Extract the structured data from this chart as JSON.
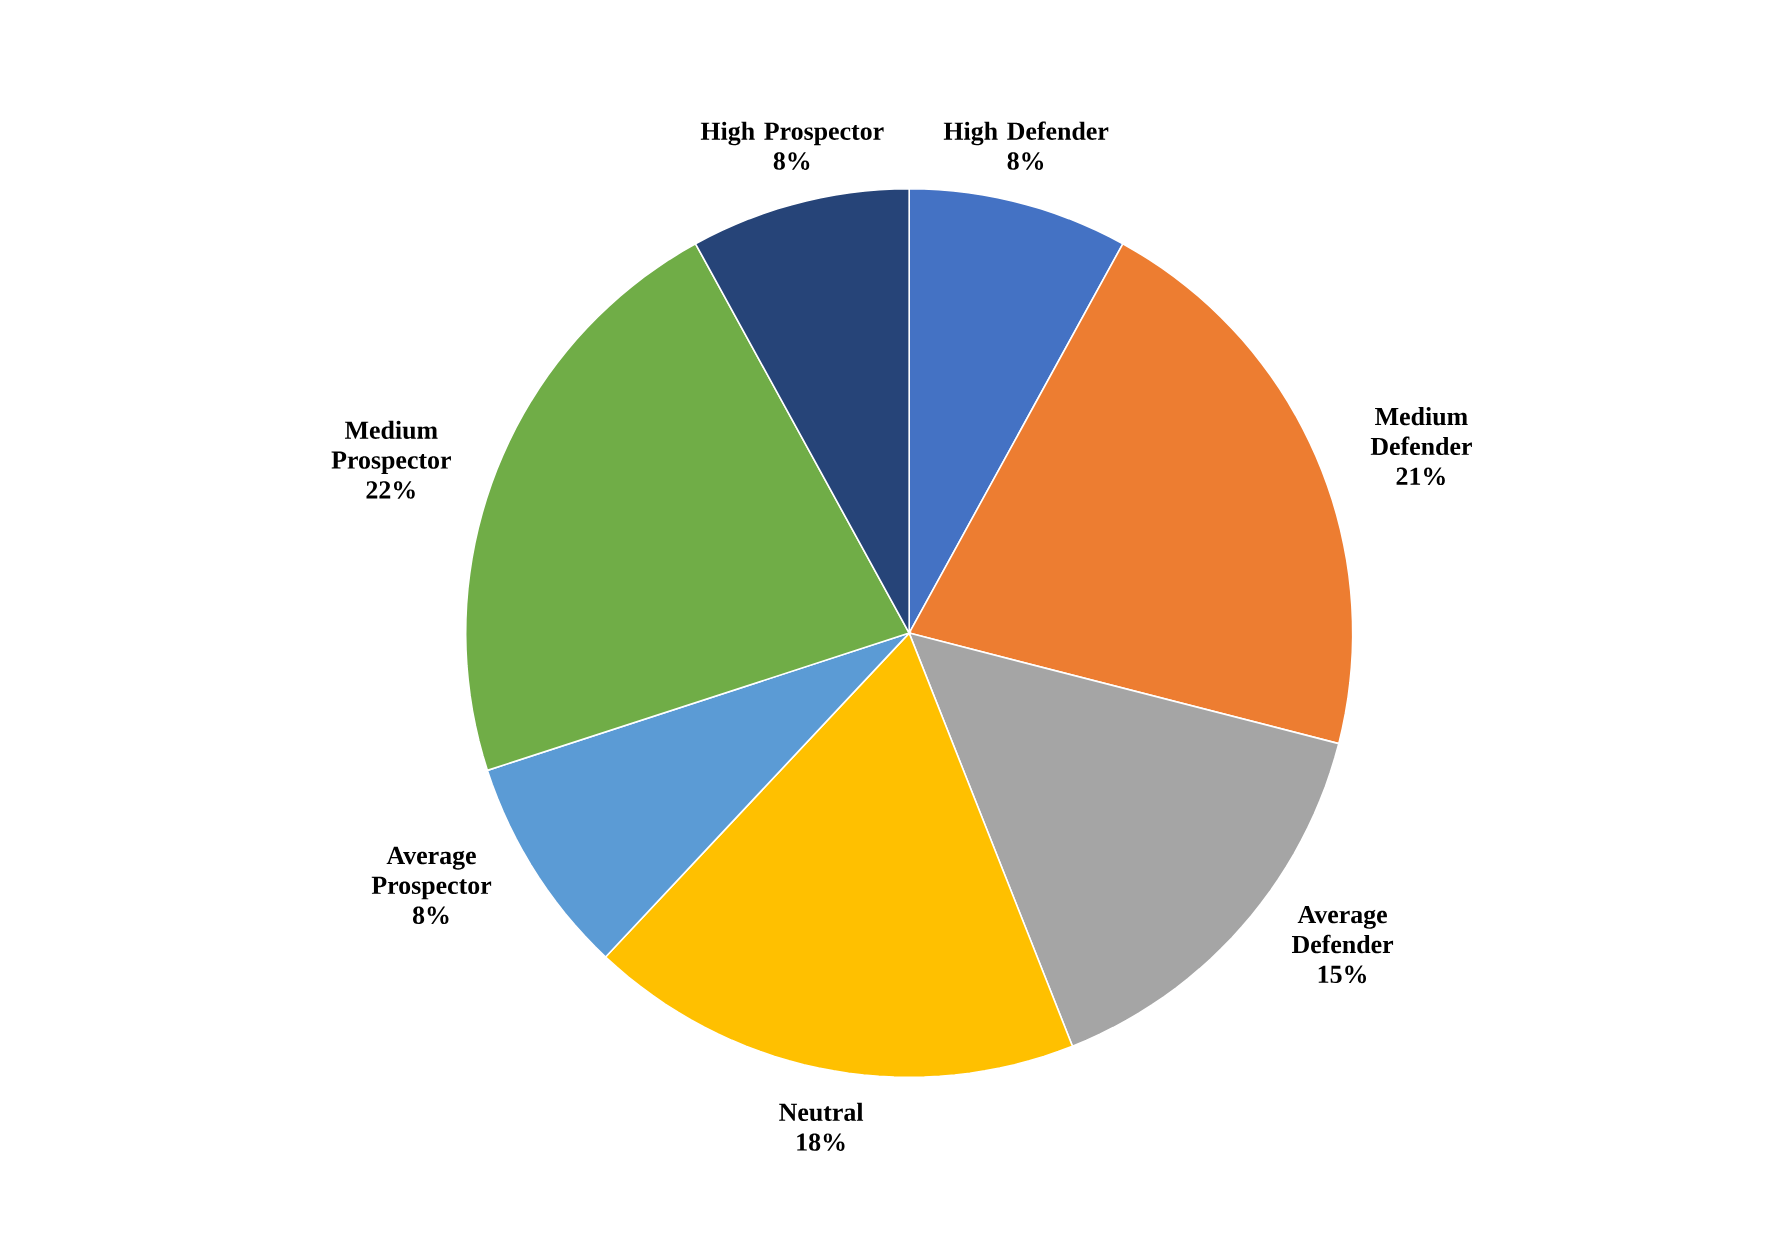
{
  "chart_data": {
    "type": "pie",
    "categories": [
      "High Defender",
      "Medium Defender",
      "Average Defender",
      "Neutral",
      "Average Prospector",
      "Medium Prospector",
      "High Prospector"
    ],
    "values": [
      8,
      21,
      15,
      18,
      8,
      22,
      8
    ],
    "value_labels": [
      "8%",
      "21%",
      "15%",
      "18%",
      "8%",
      "22%",
      "8%"
    ],
    "colors": [
      "#4472c4",
      "#ed7d31",
      "#a5a5a5",
      "#ffc000",
      "#5b9bd5",
      "#70ad47",
      "#264478"
    ]
  }
}
